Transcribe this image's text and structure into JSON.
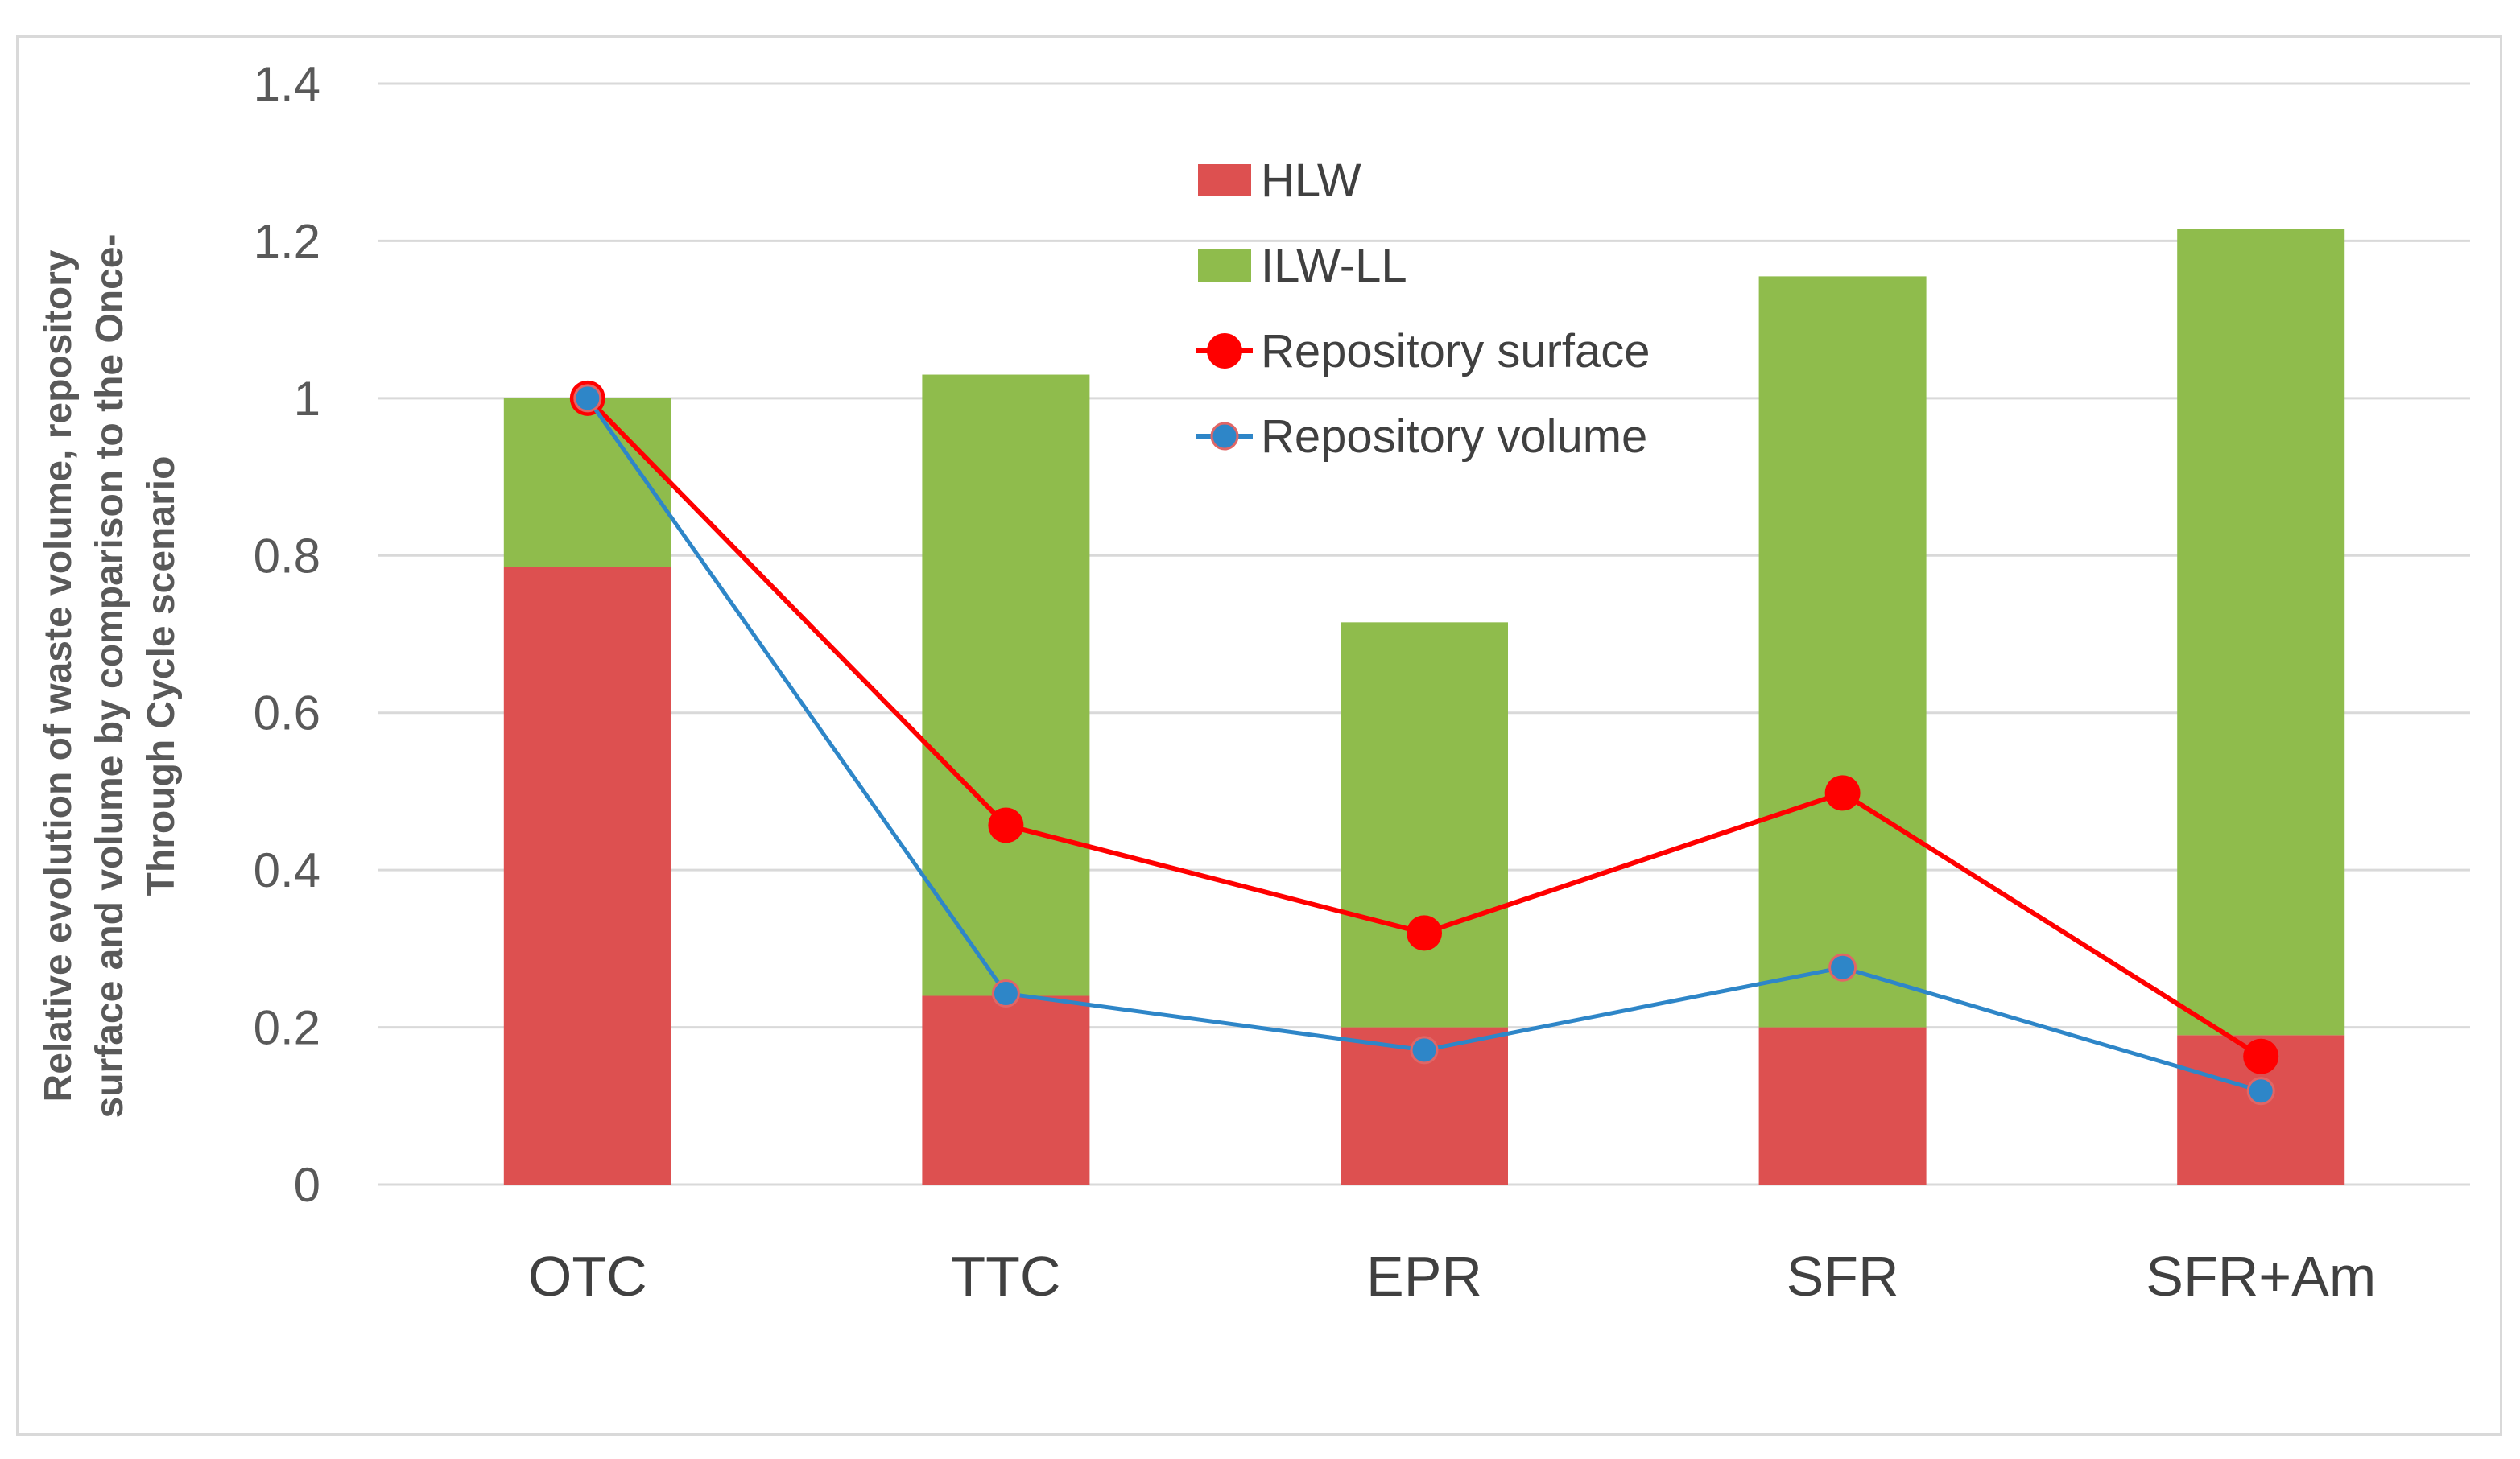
{
  "chart_data": {
    "type": "bar",
    "stacked": true,
    "title": "",
    "xlabel": "",
    "ylabel_lines": [
      "Relative evolution of waste volume, repository",
      "surface and volume by comparison to the Once-",
      "Through Cycle scenario"
    ],
    "ylim": [
      0,
      1.4
    ],
    "yticks": [
      0,
      0.2,
      0.4,
      0.6,
      0.8,
      1,
      1.2,
      1.4
    ],
    "ytick_labels": [
      "0",
      "0.2",
      "0.4",
      "0.6",
      "0.8",
      "1",
      "1.2",
      "1.4"
    ],
    "grid": true,
    "legend_position": "top-center",
    "categories": [
      "OTC",
      "TTC",
      "EPR",
      "SFR",
      "SFR+Am"
    ],
    "series": [
      {
        "name": "HLW",
        "kind": "bar",
        "color": "#dd5050",
        "values": [
          0.785,
          0.24,
          0.2,
          0.2,
          0.19
        ]
      },
      {
        "name": "ILW-LL",
        "kind": "bar",
        "color": "#8fbc4c",
        "values": [
          0.215,
          0.79,
          0.515,
          0.955,
          1.025
        ]
      },
      {
        "name": "Repository surface",
        "kind": "line",
        "color": "#ff0000",
        "values": [
          1.0,
          0.457,
          0.32,
          0.498,
          0.163
        ]
      },
      {
        "name": "Repository volume",
        "kind": "line",
        "color": "#2e86c8",
        "values": [
          1.0,
          0.243,
          0.171,
          0.276,
          0.119
        ]
      }
    ]
  }
}
